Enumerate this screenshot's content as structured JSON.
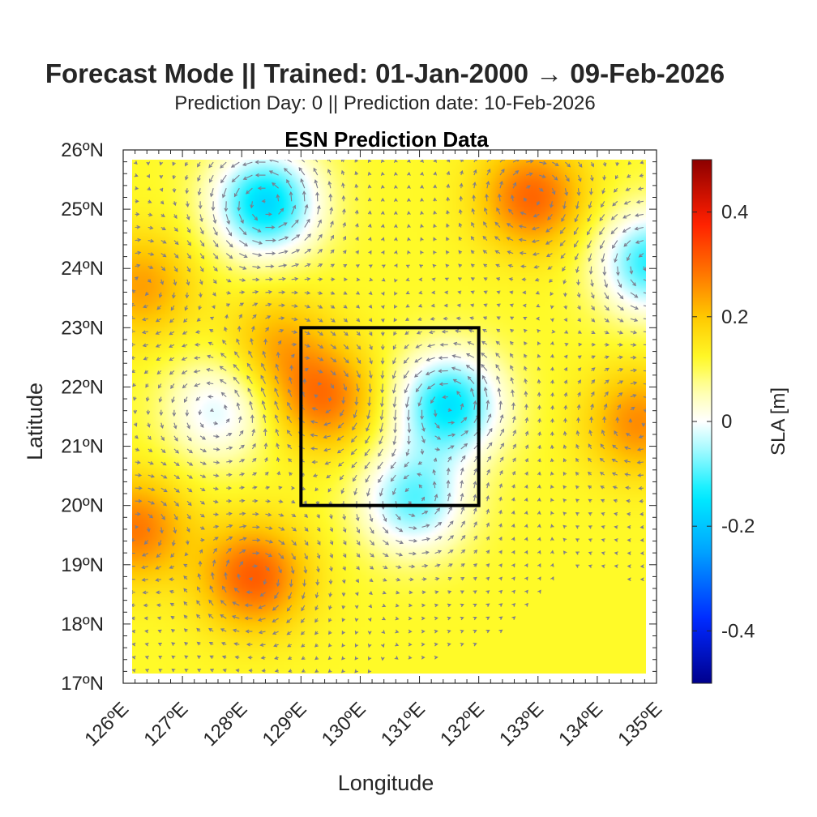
{
  "header": {
    "title": "Forecast Mode || Trained: 01-Jan-2000 → 09-Feb-2026",
    "subtitle": "Prediction Day: 0 || Prediction date: 10-Feb-2026",
    "axes_title": "ESN Prediction Data"
  },
  "chart_data": {
    "type": "heatmap",
    "title": "ESN Prediction Data",
    "xlabel": "Longitude",
    "ylabel": "Latitude",
    "xlim": [
      126,
      135
    ],
    "ylim": [
      17,
      26
    ],
    "x_ticks": [
      "126ºE",
      "127ºE",
      "128ºE",
      "129ºE",
      "130ºE",
      "131ºE",
      "132ºE",
      "133ºE",
      "134ºE",
      "135ºE"
    ],
    "y_ticks": [
      "17ºN",
      "18ºN",
      "19ºN",
      "20ºN",
      "21ºN",
      "22ºN",
      "23ºN",
      "24ºN",
      "25ºN",
      "26ºN"
    ],
    "colorbar": {
      "label": "SLA [m]",
      "limits": [
        -0.5,
        0.5
      ],
      "tick_values": [
        0.4,
        0.2,
        0,
        -0.2,
        -0.4
      ],
      "tick_labels": [
        "0.4",
        "0.2",
        "0",
        "-0.2",
        "-0.4"
      ],
      "colormap": "jet-white-centered"
    },
    "box": {
      "lon": [
        129,
        132
      ],
      "lat": [
        20,
        23
      ]
    },
    "features": [
      {
        "type": "low",
        "lon": 128.4,
        "lat": 25.1,
        "sla": -0.17
      },
      {
        "type": "low",
        "lon": 131.5,
        "lat": 21.7,
        "sla": -0.15
      },
      {
        "type": "low",
        "lon": 130.9,
        "lat": 20.1,
        "sla": -0.09
      },
      {
        "type": "low",
        "lon": 134.9,
        "lat": 24.1,
        "sla": -0.12
      },
      {
        "type": "low",
        "lon": 127.6,
        "lat": 21.6,
        "sla": -0.02
      },
      {
        "type": "high",
        "lon": 132.9,
        "lat": 25.2,
        "sla": 0.3
      },
      {
        "type": "high",
        "lon": 128.2,
        "lat": 18.8,
        "sla": 0.31
      },
      {
        "type": "high",
        "lon": 126.2,
        "lat": 19.6,
        "sla": 0.28
      },
      {
        "type": "high",
        "lon": 129.4,
        "lat": 21.8,
        "sla": 0.28
      },
      {
        "type": "high",
        "lon": 126.3,
        "lat": 23.7,
        "sla": 0.24
      },
      {
        "type": "high",
        "lon": 134.7,
        "lat": 21.4,
        "sla": 0.26
      },
      {
        "type": "high",
        "lon": 128.6,
        "lat": 22.7,
        "sla": 0.22
      }
    ],
    "background_sla": 0.12,
    "vectors": "geostrophic current arrows (grey), circulating around highs and lows"
  }
}
